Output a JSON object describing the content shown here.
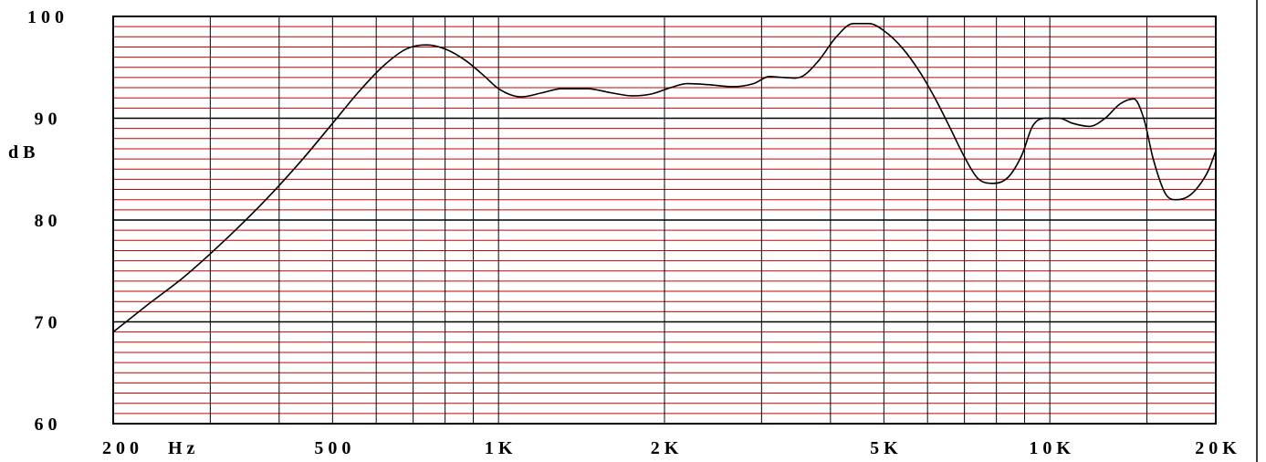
{
  "colors": {
    "minor_grid": "#cc0000",
    "major_grid": "#000000",
    "curve": "#000000",
    "background": "#ffffff"
  },
  "chart_data": {
    "type": "line",
    "title": "",
    "xscale": "log",
    "xlim": [
      200,
      20000
    ],
    "ylim": [
      60,
      100
    ],
    "grid": true,
    "ylabel": "d B",
    "xlabel": "H z",
    "y_ticks": [
      {
        "value": 100,
        "label": "1 0 0"
      },
      {
        "value": 90,
        "label": "9 0"
      },
      {
        "value": 80,
        "label": "8 0"
      },
      {
        "value": 70,
        "label": "7 0"
      },
      {
        "value": 60,
        "label": "6 0"
      }
    ],
    "x_ticks": [
      {
        "value": 200,
        "label": "2 0 0"
      },
      {
        "value": 500,
        "label": "5 0 0"
      },
      {
        "value": 1000,
        "label": "1 K"
      },
      {
        "value": 2000,
        "label": "2 K"
      },
      {
        "value": 5000,
        "label": "5 K"
      },
      {
        "value": 10000,
        "label": "1 0 K"
      },
      {
        "value": 20000,
        "label": "2 0 K"
      }
    ],
    "x_gridlines": [
      300,
      400,
      500,
      600,
      700,
      800,
      900,
      1000,
      2000,
      3000,
      4000,
      5000,
      6000,
      7000,
      8000,
      9000,
      10000,
      15000
    ],
    "series": [
      {
        "x": [
          200,
          230,
          270,
          320,
          380,
          440,
          500,
          560,
          620,
          680,
          740,
          800,
          870,
          940,
          1000,
          1100,
          1200,
          1300,
          1450,
          1600,
          1750,
          1900,
          2050,
          2200,
          2400,
          2650,
          2900,
          3100,
          3300,
          3550,
          3800,
          4100,
          4400,
          4700,
          5000,
          5400,
          5800,
          6200,
          6600,
          7000,
          7400,
          7900,
          8400,
          8900,
          9300,
          9800,
          10400,
          11000,
          11800,
          12600,
          13400,
          14200,
          14800,
          15400,
          16200,
          17000,
          17800,
          18600,
          19400,
          20000
        ],
        "y": [
          69,
          71.6,
          74.5,
          78.1,
          82.1,
          85.9,
          89.5,
          92.7,
          95.2,
          96.8,
          97.2,
          96.8,
          95.7,
          94.2,
          92.9,
          92.1,
          92.5,
          92.9,
          92.9,
          92.5,
          92.2,
          92.4,
          93,
          93.4,
          93.3,
          93.1,
          93.4,
          94.1,
          94,
          94.1,
          95.6,
          98,
          99.3,
          99.3,
          98.6,
          96.9,
          94.6,
          91.9,
          89,
          86.2,
          84.1,
          83.6,
          84.2,
          86.4,
          89.2,
          90,
          90,
          89.5,
          89.2,
          90,
          91.4,
          91.9,
          90,
          86,
          82.6,
          82,
          82.3,
          83.3,
          84.9,
          86.8
        ]
      }
    ]
  }
}
